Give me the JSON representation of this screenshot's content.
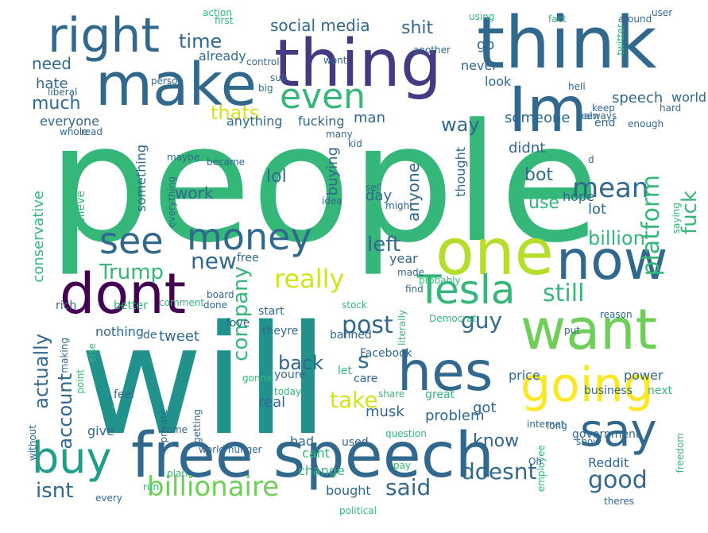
{
  "words": [
    {
      "text": "people",
      "color": "#35b779"
    },
    {
      "text": "will",
      "color": "#21918c"
    },
    {
      "text": "free speech",
      "color": "#31688e"
    },
    {
      "text": "think",
      "color": "#31688e"
    },
    {
      "text": "thing",
      "color": "#443983"
    },
    {
      "text": "make",
      "color": "#31688e"
    },
    {
      "text": "Im",
      "color": "#31688e"
    },
    {
      "text": "right",
      "color": "#31688e"
    },
    {
      "text": "one",
      "color": "#b5de2b"
    },
    {
      "text": "now",
      "color": "#31688e"
    },
    {
      "text": "want",
      "color": "#6ece58"
    },
    {
      "text": "dont",
      "color": "#440154"
    },
    {
      "text": "hes",
      "color": "#31688e"
    },
    {
      "text": "going",
      "color": "#fde725"
    },
    {
      "text": "say",
      "color": "#31688e"
    },
    {
      "text": "buy",
      "color": "#1f9e89"
    },
    {
      "text": "see",
      "color": "#31688e"
    },
    {
      "text": "money",
      "color": "#31688e"
    },
    {
      "text": "Tesla",
      "color": "#35b779"
    },
    {
      "text": "even",
      "color": "#35b779"
    },
    {
      "text": "mean",
      "color": "#31688e"
    },
    {
      "text": "really",
      "color": "#d2e21b"
    },
    {
      "text": "still",
      "color": "#35b779"
    },
    {
      "text": "billionaire",
      "color": "#6ece58"
    },
    {
      "text": "new",
      "color": "#31688e"
    },
    {
      "text": "Trump",
      "color": "#35b779"
    },
    {
      "text": "post",
      "color": "#31688e"
    },
    {
      "text": "guy",
      "color": "#31688e"
    },
    {
      "text": "company",
      "color": "#35b779"
    },
    {
      "text": "platform",
      "color": "#35b779"
    },
    {
      "text": "fuck",
      "color": "#35b779"
    },
    {
      "text": "billion",
      "color": "#35b779"
    },
    {
      "text": "left",
      "color": "#31688e"
    },
    {
      "text": "actually",
      "color": "#31688e"
    },
    {
      "text": "account",
      "color": "#31688e"
    },
    {
      "text": "take",
      "color": "#d2e21b"
    },
    {
      "text": "back",
      "color": "#31688e"
    },
    {
      "text": "said",
      "color": "#31688e"
    },
    {
      "text": "doesnt",
      "color": "#31688e"
    },
    {
      "text": "good",
      "color": "#31688e"
    },
    {
      "text": "know",
      "color": "#31688e"
    },
    {
      "text": "isnt",
      "color": "#31688e"
    },
    {
      "text": "time",
      "color": "#31688e"
    },
    {
      "text": "social media",
      "color": "#31688e"
    },
    {
      "text": "shit",
      "color": "#31688e"
    },
    {
      "text": "need",
      "color": "#31688e"
    },
    {
      "text": "much",
      "color": "#31688e"
    },
    {
      "text": "thats",
      "color": "#d2e21b"
    },
    {
      "text": "way",
      "color": "#31688e"
    },
    {
      "text": "anything",
      "color": "#31688e"
    },
    {
      "text": "fucking",
      "color": "#31688e"
    },
    {
      "text": "someone",
      "color": "#31688e"
    },
    {
      "text": "lol",
      "color": "#31688e"
    },
    {
      "text": "bot",
      "color": "#31688e"
    },
    {
      "text": "use",
      "color": "#35b779"
    },
    {
      "text": "anyone",
      "color": "#31688e"
    },
    {
      "text": "work",
      "color": "#31688e"
    },
    {
      "text": "something",
      "color": "#31688e"
    },
    {
      "text": "buying",
      "color": "#31688e"
    },
    {
      "text": "thought",
      "color": "#31688e"
    },
    {
      "text": "day",
      "color": "#31688e"
    },
    {
      "text": "year",
      "color": "#31688e"
    },
    {
      "text": "lot",
      "color": "#31688e"
    },
    {
      "text": "hope",
      "color": "#31688e"
    },
    {
      "text": "didnt",
      "color": "#31688e"
    },
    {
      "text": "go",
      "color": "#31688e"
    },
    {
      "text": "never",
      "color": "#31688e"
    },
    {
      "text": "look",
      "color": "#31688e"
    },
    {
      "text": "already",
      "color": "#31688e"
    },
    {
      "text": "hate",
      "color": "#31688e"
    },
    {
      "text": "everyone",
      "color": "#31688e"
    },
    {
      "text": "man",
      "color": "#31688e"
    },
    {
      "text": "speech",
      "color": "#31688e"
    },
    {
      "text": "world",
      "color": "#31688e"
    },
    {
      "text": "end",
      "color": "#31688e"
    },
    {
      "text": "conservative",
      "color": "#35b779"
    },
    {
      "text": "believe",
      "color": "#35b779"
    },
    {
      "text": "tweet",
      "color": "#31688e"
    },
    {
      "text": "de",
      "color": "#31688e"
    },
    {
      "text": "nothing",
      "color": "#31688e"
    },
    {
      "text": "musk",
      "color": "#31688e"
    },
    {
      "text": "s",
      "color": "#31688e"
    },
    {
      "text": "problem",
      "color": "#31688e"
    },
    {
      "text": "got",
      "color": "#31688e"
    },
    {
      "text": "Reddit",
      "color": "#31688e"
    },
    {
      "text": "government",
      "color": "#31688e"
    },
    {
      "text": "cant",
      "color": "#35b779"
    },
    {
      "text": "bad",
      "color": "#31688e"
    },
    {
      "text": "real",
      "color": "#31688e"
    },
    {
      "text": "give",
      "color": "#31688e"
    },
    {
      "text": "feel",
      "color": "#31688e"
    },
    {
      "text": "point",
      "color": "#35b779"
    },
    {
      "text": "love",
      "color": "#31688e"
    },
    {
      "text": "free",
      "color": "#31688e"
    },
    {
      "text": "rich",
      "color": "#31688e"
    },
    {
      "text": "better",
      "color": "#35b779"
    },
    {
      "text": "price",
      "color": "#31688e"
    },
    {
      "text": "power",
      "color": "#31688e"
    },
    {
      "text": "business",
      "color": "#31688e"
    },
    {
      "text": "next",
      "color": "#35b779"
    },
    {
      "text": "internet",
      "color": "#31688e"
    },
    {
      "text": "bought",
      "color": "#31688e"
    },
    {
      "text": "change",
      "color": "#35b779"
    },
    {
      "text": "used",
      "color": "#31688e"
    },
    {
      "text": "theyre",
      "color": "#31688e"
    },
    {
      "text": "start",
      "color": "#31688e"
    },
    {
      "text": "Facebook",
      "color": "#31688e"
    },
    {
      "text": "banned",
      "color": "#31688e"
    },
    {
      "text": "youre",
      "color": "#31688e"
    },
    {
      "text": "care",
      "color": "#31688e"
    },
    {
      "text": "let",
      "color": "#35b779"
    },
    {
      "text": "share",
      "color": "#35b779"
    },
    {
      "text": "world hunger",
      "color": "#31688e"
    },
    {
      "text": "freedom",
      "color": "#35b779"
    },
    {
      "text": "employee",
      "color": "#35b779"
    },
    {
      "text": "saying",
      "color": "#35b779"
    },
    {
      "text": "great",
      "color": "#35b779"
    },
    {
      "text": "Oh",
      "color": "#31688e"
    },
    {
      "text": "theres",
      "color": "#31688e"
    },
    {
      "text": "political",
      "color": "#35b779"
    },
    {
      "text": "every",
      "color": "#31688e"
    },
    {
      "text": "maybe",
      "color": "#31688e"
    },
    {
      "text": "everything",
      "color": "#31688e"
    },
    {
      "text": "many",
      "color": "#31688e"
    },
    {
      "text": "person",
      "color": "#31688e"
    },
    {
      "text": "liberal",
      "color": "#31688e"
    },
    {
      "text": "control",
      "color": "#31688e"
    },
    {
      "text": "first",
      "color": "#35b779"
    },
    {
      "text": "around",
      "color": "#31688e"
    },
    {
      "text": "user",
      "color": "#31688e"
    },
    {
      "text": "fact",
      "color": "#35b779"
    },
    {
      "text": "another",
      "color": "#31688e"
    },
    {
      "text": "keep",
      "color": "#31688e"
    },
    {
      "text": "always",
      "color": "#31688e"
    },
    {
      "text": "hell",
      "color": "#31688e"
    },
    {
      "text": "made",
      "color": "#31688e"
    },
    {
      "text": "might",
      "color": "#31688e"
    },
    {
      "text": "idea",
      "color": "#31688e"
    },
    {
      "text": "find",
      "color": "#31688e"
    },
    {
      "text": "literally",
      "color": "#35b779"
    },
    {
      "text": "stock",
      "color": "#35b779"
    },
    {
      "text": "gonna",
      "color": "#35b779"
    },
    {
      "text": "probably",
      "color": "#35b779"
    },
    {
      "text": "put",
      "color": "#31688e"
    },
    {
      "text": "show",
      "color": "#31688e"
    },
    {
      "text": "long",
      "color": "#31688e"
    },
    {
      "text": "question",
      "color": "#35b779"
    },
    {
      "text": "reason",
      "color": "#31688e"
    },
    {
      "text": "board",
      "color": "#31688e"
    },
    {
      "text": "done",
      "color": "#31688e"
    },
    {
      "text": "private",
      "color": "#31688e"
    },
    {
      "text": "getting",
      "color": "#31688e"
    },
    {
      "text": "come",
      "color": "#31688e"
    },
    {
      "text": "without",
      "color": "#31688e"
    },
    {
      "text": "comment",
      "color": "#35b779"
    },
    {
      "text": "became",
      "color": "#31688e"
    },
    {
      "text": "sub",
      "color": "#31688e"
    },
    {
      "text": "big",
      "color": "#31688e"
    },
    {
      "text": "action",
      "color": "#35b779"
    },
    {
      "text": "using",
      "color": "#35b779"
    },
    {
      "text": "wont",
      "color": "#31688e"
    },
    {
      "text": "enough",
      "color": "#31688e"
    },
    {
      "text": "hard",
      "color": "#31688e"
    },
    {
      "text": "sell",
      "color": "#31688e"
    },
    {
      "text": "d",
      "color": "#31688e"
    },
    {
      "text": "kid",
      "color": "#31688e"
    },
    {
      "text": "plan",
      "color": "#35b779"
    },
    {
      "text": "read",
      "color": "#31688e"
    },
    {
      "text": "whole",
      "color": "#31688e"
    },
    {
      "text": "twitter",
      "color": "#35b779"
    },
    {
      "text": "today",
      "color": "#35b779"
    },
    {
      "text": "run",
      "color": "#35b779"
    },
    {
      "text": "Democrat",
      "color": "#35b779"
    },
    {
      "text": "making",
      "color": "#31688e"
    },
    {
      "text": "else",
      "color": "#35b779"
    },
    {
      "text": "seen",
      "color": "#31688e"
    },
    {
      "text": "pay",
      "color": "#35b779"
    }
  ]
}
